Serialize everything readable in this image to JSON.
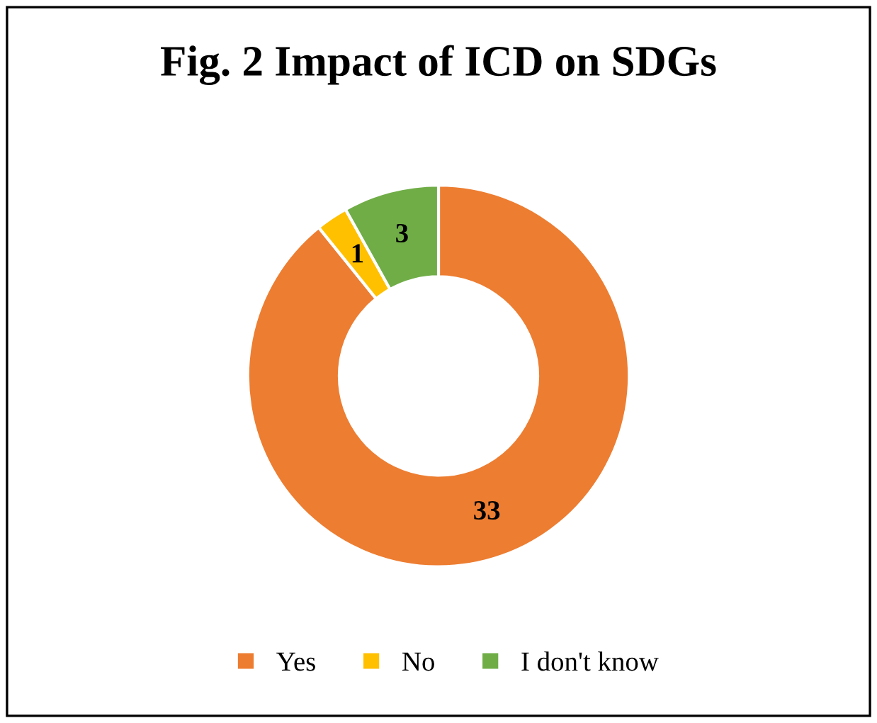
{
  "chart_data": {
    "type": "donut",
    "title": "Fig. 2 Impact of ICD on SDGs",
    "categories": [
      "Yes",
      "No",
      "I don't know"
    ],
    "values": [
      33,
      1,
      3
    ],
    "colors": [
      "#ed7d31",
      "#ffc000",
      "#70ad47"
    ],
    "data_labels": true,
    "legend": "bottom"
  }
}
